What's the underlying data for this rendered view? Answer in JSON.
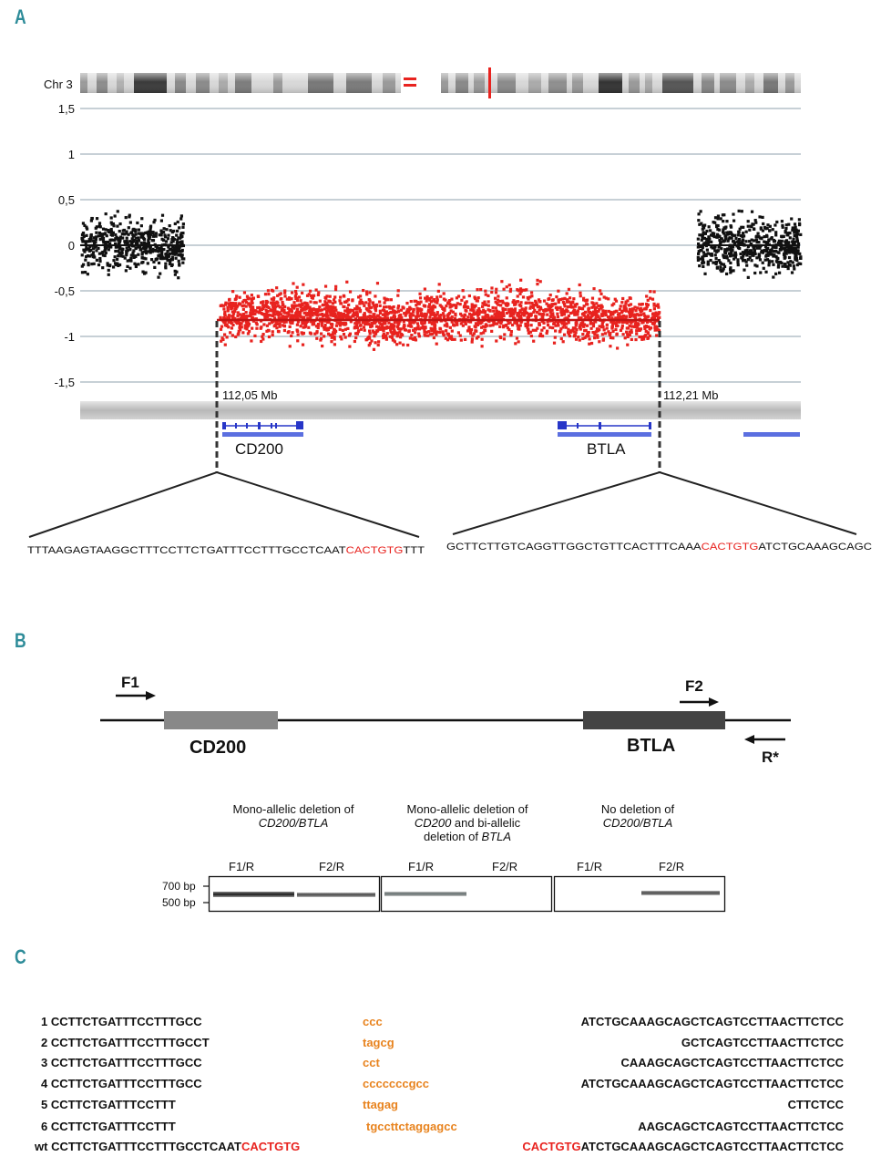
{
  "panel_a": {
    "label": "A",
    "chromosome_label": "Chr 3",
    "y_ticks": [
      "1,5",
      "1",
      "0,5",
      "0",
      "-0,5",
      "-1",
      "-1,5"
    ],
    "y_tick_values": [
      1.5,
      1,
      0.5,
      0,
      -0.5,
      -1,
      -1.5
    ],
    "left_breakpoint": "112,05 Mb",
    "right_breakpoint": "112,21 Mb",
    "genes": [
      "CD200",
      "BTLA"
    ],
    "colors": {
      "deleted": "#e8231f",
      "normal": "#111111",
      "gene": "#3a4fd6",
      "grid": "#c7d0d6"
    },
    "seq_left": {
      "before": "TTTAAGAGTAAGGCTTTCCTTCTGATTTCCTTTGCCTCAAT",
      "highlight": "CACTGTG",
      "after": "TTT"
    },
    "seq_right": {
      "before": "GCTTCTTGTCAGGTTGGCTGTTCACTTTCAAA",
      "highlight": "CACTGTG",
      "after": "ATCTGCAAAGCAGC"
    }
  },
  "panel_b": {
    "label": "B",
    "primers": {
      "f1": "F1",
      "f2": "F2",
      "r": "R*"
    },
    "genes": {
      "left": "CD200",
      "right": "BTLA"
    },
    "gel_groups": [
      {
        "title_html": "Mono-allelic deletion of<br><i>CD200/BTLA</i>",
        "lanes": [
          "F1/R",
          "F2/R"
        ]
      },
      {
        "title_html": "Mono-allelic deletion of<br><i>CD200</i> and bi-allelic<br>deletion of <i>BTLA</i>",
        "lanes": [
          "F1/R",
          "F2/R"
        ]
      },
      {
        "title_html": "No deletion of<br><i>CD200/BTLA</i>",
        "lanes": [
          "F1/R",
          "F2/R"
        ]
      }
    ],
    "markers": [
      "700 bp",
      "500 bp"
    ]
  },
  "panel_c": {
    "label": "C",
    "rows": [
      {
        "id": "1",
        "left": "CCTTCTGATTTCCTTTGCC",
        "left_red": "",
        "insert": "ccc",
        "right_red": "",
        "right": "ATCTGCAAAGCAGCTCAGTCCTTAACTTCTCC"
      },
      {
        "id": "2",
        "left": "CCTTCTGATTTCCTTTGCCT",
        "left_red": "",
        "insert": "tagcg",
        "right_red": "",
        "right": "GCTCAGTCCTTAACTTCTCC"
      },
      {
        "id": "3",
        "left": "CCTTCTGATTTCCTTTGCC",
        "left_red": "",
        "insert": "cct",
        "right_red": "",
        "right": "CAAAGCAGCTCAGTCCTTAACTTCTCC"
      },
      {
        "id": "4",
        "left": "CCTTCTGATTTCCTTTGCC",
        "left_red": "",
        "insert": "cccccccgcc",
        "right_red": "",
        "right": "ATCTGCAAAGCAGCTCAGTCCTTAACTTCTCC"
      },
      {
        "id": "5",
        "left": "CCTTCTGATTTCCTTT",
        "left_red": "",
        "insert": "ttagag",
        "right_red": "",
        "right": "CTTCTCC"
      },
      {
        "id": "6",
        "left": "CCTTCTGATTTCCTTT",
        "left_red": "",
        "insert": "tgccttctaggagcc",
        "right_red": "",
        "right": "AAGCAGCTCAGTCCTTAACTTCTCC"
      },
      {
        "id": "wt",
        "left": "CCTTCTGATTTCCTTTGCCTCAAT",
        "left_red": "CACTGTG",
        "insert": "",
        "right_red": "CACTGTG",
        "right": "ATCTGCAAAGCAGCTCAGTCCTTAACTTCTCC"
      }
    ]
  }
}
